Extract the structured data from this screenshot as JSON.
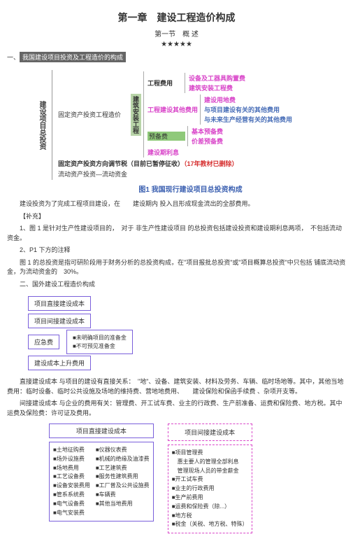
{
  "title": {
    "chapter": "第一章　建设工程造价构成",
    "section": "第一节　概 述",
    "stars": "★★★★★"
  },
  "sec1": {
    "num": "一、",
    "label": "我国建设项目投资及工程造价的构成"
  },
  "diag1": {
    "root": "建设项目总投资",
    "branch1": "固定资产投资",
    "branch1b": "工程造价",
    "vbar": "建筑安装工程",
    "l1": "工程费用",
    "l1a": "设备及工器具购置费",
    "l1b": "建筑安装工程费",
    "l2": "工程建设其他费用",
    "l2a": "建设用地费",
    "l2b": "与项目建设有关的其他费用",
    "l2c": "与未来生产经营有关的其他费用",
    "l3": "预备费",
    "l3a": "基本预备费",
    "l3b": "价差预备费",
    "l4": "建设期利息",
    "l5": "固定资产投资方向调节税（目前已暂停征收）",
    "l5b": "（17年教材已删除）",
    "branch2": "流动资产投资",
    "branch2b": "流动资金",
    "caption": "图1 我国现行建设项目总投资构成"
  },
  "text1": {
    "p1": "建设投资为了完成工程项目建设，在　　建设期内 投入且形成现金流出的全部费用。",
    "note": "【补充】",
    "p2": "1、图 1 是针对生产性建设项目的，　对于 非生产性建设项目 的总投资包括建设投资和建设期利息两项，　不包括流动资金。",
    "p3": "2、P1 下方的注释",
    "p4": "图 1 的总投资是指可研阶段用于财务分析的总投资构成，在\"项目报批总投资\"或\"项目概算总投资\"中只包括 铺底流动资金，为流动资金的　30%。",
    "sec2": "二、国外建设工程造价构成"
  },
  "diag2": {
    "b1": "项目直接建设成本",
    "b2": "项目间接建设成本",
    "b3": "应急费",
    "b3a": "■未明确项目的准备金",
    "b3b": "■不可预见准备金",
    "b4": "建设成本上升费用"
  },
  "text2": {
    "p1": "直接建设成本 与项目的建设有直接关系：　\"地\"、设备、建筑安装、材料及劳务、车辆、临时场地等。其中，其他当地费用：临时设备、临时公共设施及场地的维持费、营地地费用、　　建设保险和保函手续费 、杂项开支等。",
    "p2": "间接建设成本 与企业的费用有关：管理费、开工试车费、业主的行政费、生产前准备、运费和保险费、地方税。其中 运费及保险费：许可证及费用。"
  },
  "diag3": {
    "h1": "项目直接建设成本",
    "h2": "项目间接建设成本",
    "col1": [
      "■土地征购费",
      "■场外设施费",
      "■场地费用",
      "■工艺设备费",
      "■设备安装费用",
      "■管系系统费",
      "■电气设备费",
      "■电气安装费"
    ],
    "col2": [
      "■仪器仪表费",
      "■机械的绝缘及油漆费",
      "■工艺建筑费",
      "■服务性建筑费用",
      "■工厂普及公共设施费",
      "■车辆费",
      "■其他当地费用"
    ],
    "col3": [
      "■项目管理费",
      "　惠主要人的管理全部利息",
      "　管理现场人员的带金薪金",
      "■开工试车费",
      "■业主的行政费用",
      "■生产前费用",
      "■运费和保险费（除...）",
      "■地方税",
      "■税金（关税、地方税、特殊）"
    ]
  }
}
